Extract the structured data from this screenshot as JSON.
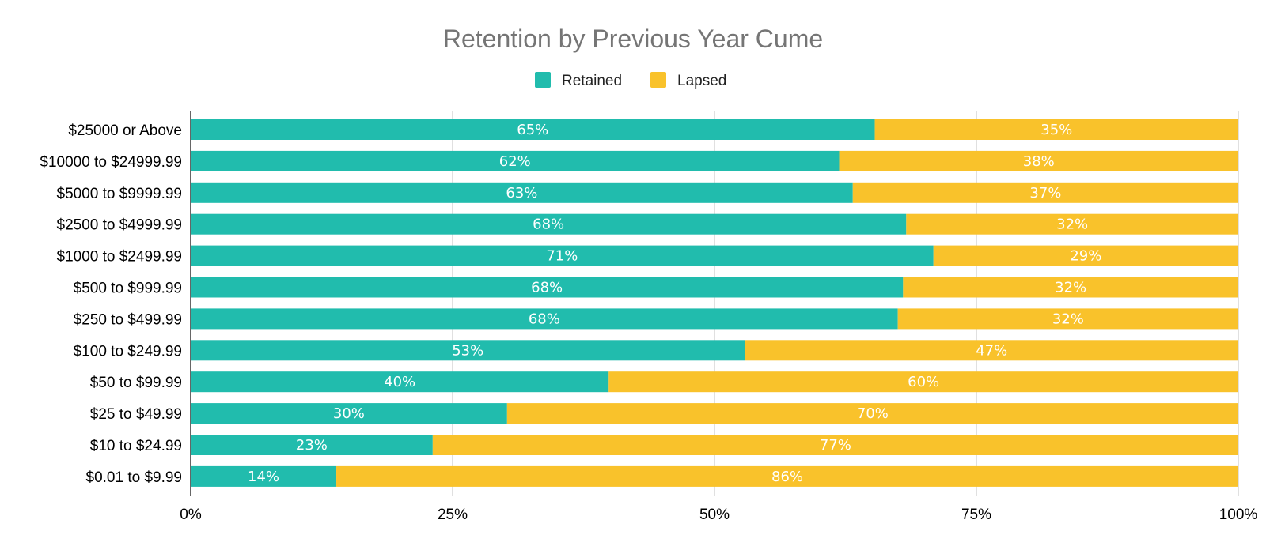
{
  "chart_data": {
    "type": "bar",
    "orientation": "horizontal",
    "stacked": true,
    "title": "Retention by Previous Year Cume",
    "xlabel": "",
    "ylabel": "",
    "xlim": [
      0,
      100
    ],
    "x_ticks": [
      "0%",
      "25%",
      "50%",
      "75%",
      "100%"
    ],
    "x_tick_values": [
      0,
      25,
      50,
      75,
      100
    ],
    "legend_position": "top-center",
    "grid": true,
    "categories": [
      "$25000 or Above",
      "$10000 to $24999.99",
      "$5000 to $9999.99",
      "$2500 to $4999.99",
      "$1000 to $2499.99",
      "$500 to $999.99",
      "$250 to $499.99",
      "$100 to $249.99",
      "$50 to $99.99",
      "$25 to $49.99",
      "$10 to $24.99",
      "$0.01 to $9.99"
    ],
    "series": [
      {
        "name": "Retained",
        "color": "#21bcad",
        "values": [
          65.3,
          61.9,
          63.2,
          68.3,
          70.9,
          68.0,
          67.5,
          52.9,
          39.9,
          30.2,
          23.1,
          13.9
        ],
        "labels": [
          "65%",
          "62%",
          "63%",
          "68%",
          "71%",
          "68%",
          "68%",
          "53%",
          "40%",
          "30%",
          "23%",
          "14%"
        ]
      },
      {
        "name": "Lapsed",
        "color": "#f9c22b",
        "values": [
          34.7,
          38.1,
          36.8,
          31.7,
          29.1,
          32.0,
          32.5,
          47.1,
          60.1,
          69.8,
          76.9,
          86.1
        ],
        "labels": [
          "35%",
          "38%",
          "37%",
          "32%",
          "29%",
          "32%",
          "32%",
          "47%",
          "60%",
          "70%",
          "77%",
          "86%"
        ]
      }
    ]
  }
}
